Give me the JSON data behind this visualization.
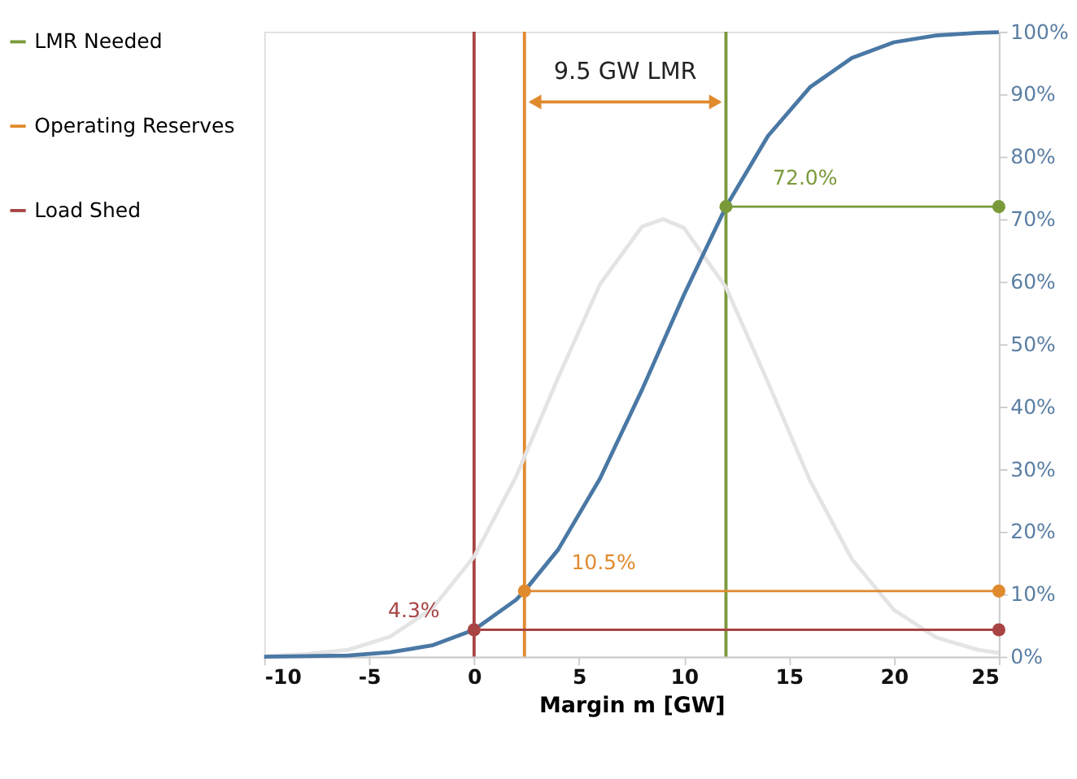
{
  "chart_data": {
    "type": "line",
    "xlabel": "Margin m [GW]",
    "xlim": [
      -10,
      25
    ],
    "xticks": [
      -10,
      -5,
      0,
      5,
      10,
      15,
      20,
      25
    ],
    "ylim": [
      0,
      100
    ],
    "yticks": [
      {
        "value": 0,
        "label": "0%"
      },
      {
        "value": 10,
        "label": "10%"
      },
      {
        "value": 20,
        "label": "20%"
      },
      {
        "value": 30,
        "label": "30%"
      },
      {
        "value": 40,
        "label": "40%"
      },
      {
        "value": 50,
        "label": "50%"
      },
      {
        "value": 60,
        "label": "60%"
      },
      {
        "value": 70,
        "label": "70%"
      },
      {
        "value": 80,
        "label": "80%"
      },
      {
        "value": 90,
        "label": "90%"
      },
      {
        "value": 100,
        "label": "100%"
      }
    ],
    "series": [
      {
        "color": "#e4e4e4",
        "x": [
          -10,
          -8,
          -6,
          -4,
          -2,
          0,
          2,
          4,
          6,
          8,
          9,
          10,
          12,
          14,
          16,
          18,
          20,
          22,
          24,
          25
        ],
        "values": [
          0.1,
          0.4,
          1.1,
          3.2,
          7.7,
          16.0,
          28.8,
          44.6,
          59.6,
          68.8,
          70,
          68.6,
          59.1,
          43.9,
          28.2,
          15.6,
          7.5,
          3.1,
          1.1,
          0.6
        ]
      },
      {
        "color": "#4a78a5",
        "x": [
          -10,
          -8,
          -6,
          -4,
          -2,
          0,
          2,
          2.4,
          4,
          6,
          8,
          10,
          12,
          14,
          16,
          18,
          20,
          22,
          24,
          25
        ],
        "values": [
          0.0,
          0.1,
          0.2,
          0.7,
          1.8,
          4.3,
          9.1,
          10.5,
          17.1,
          28.5,
          42.7,
          57.9,
          72.0,
          83.3,
          91.1,
          95.8,
          98.3,
          99.4,
          99.8,
          99.9
        ]
      },
      {
        "name": "LMR Needed",
        "color": "#7a9a3a",
        "marker": "circle",
        "x": [
          12,
          25
        ],
        "values": [
          72.0,
          72.0
        ]
      },
      {
        "name": "Operating Reserves",
        "color": "#e08a2e",
        "marker": "circle",
        "x": [
          2.4,
          25
        ],
        "values": [
          10.5,
          10.5
        ]
      },
      {
        "name": "Load Shed",
        "color": "#a84444",
        "marker": "circle",
        "x": [
          0,
          25
        ],
        "values": [
          4.3,
          4.3
        ]
      }
    ],
    "ref_lines": [
      {
        "axis": "x",
        "value": 0,
        "color": "#a84444"
      },
      {
        "axis": "x",
        "value": 2.4,
        "color": "#e08a2e"
      },
      {
        "axis": "x",
        "value": 12,
        "color": "#7a9a3a"
      }
    ],
    "annotations": [
      "9.5 GW LMR",
      {
        "text": "72.0%",
        "x": 12,
        "y": 72.0
      },
      {
        "text": "10.5%",
        "x": 2.4,
        "y": 10.5
      },
      {
        "text": "4.3%",
        "x": 0,
        "y": 4.3
      }
    ],
    "legend": "left",
    "grid": false
  }
}
